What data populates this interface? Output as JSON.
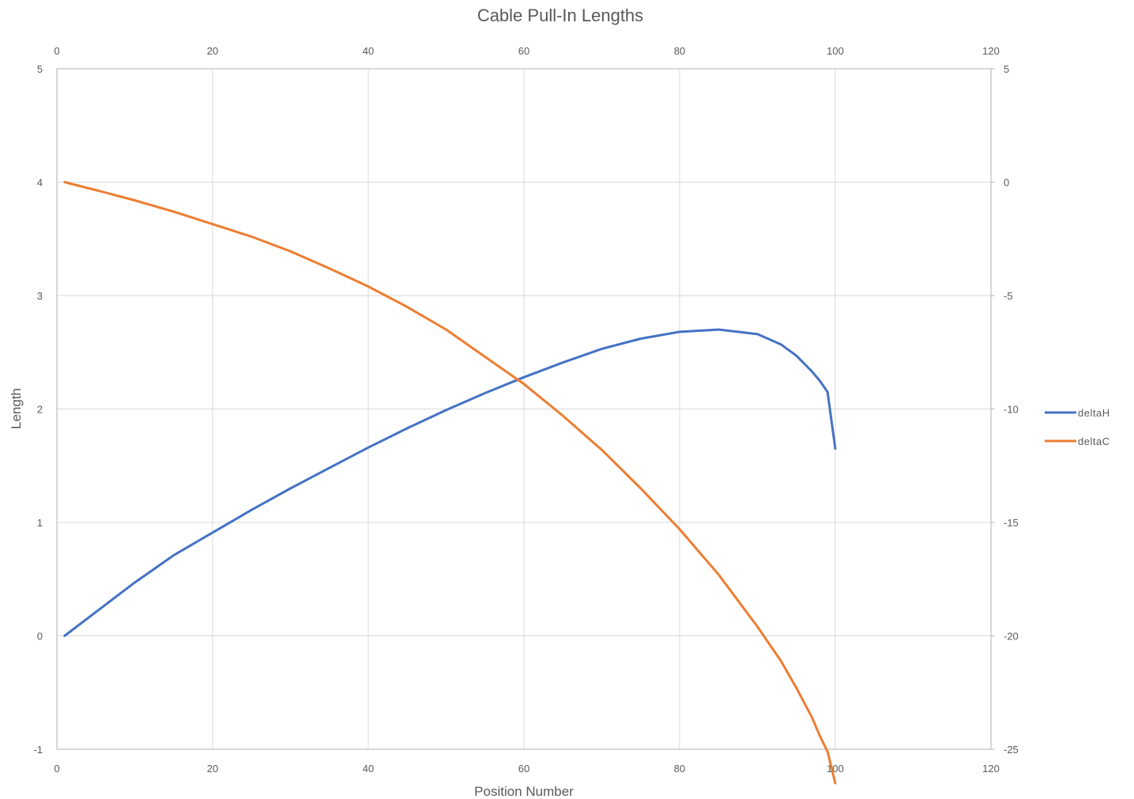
{
  "chart_data": {
    "type": "line",
    "title": "Cable Pull-In Lengths",
    "xlabel": "Position Number",
    "ylabel": "Length",
    "xlim": [
      0,
      120
    ],
    "x_ticks": [
      0,
      20,
      40,
      60,
      80,
      100,
      120
    ],
    "x_tick_labels": [
      "0",
      "20",
      "40",
      "60",
      "80",
      "100",
      "120"
    ],
    "ylim": [
      -1,
      5
    ],
    "y_ticks": [
      -1,
      0,
      1,
      2,
      3,
      4,
      5
    ],
    "y_tick_labels": [
      "-1",
      "0",
      "1",
      "2",
      "3",
      "4",
      "5"
    ],
    "y2lim": [
      -25,
      5
    ],
    "y2_ticks": [
      -25,
      -20,
      -15,
      -10,
      -5,
      0,
      5
    ],
    "y2_tick_labels": [
      "-25",
      "-20",
      "-15",
      "-10",
      "-5",
      "0",
      "5"
    ],
    "grid": true,
    "legend_position": "right",
    "x": [
      1,
      5,
      10,
      15,
      20,
      25,
      30,
      35,
      40,
      45,
      50,
      55,
      60,
      65,
      70,
      75,
      80,
      85,
      90,
      93,
      95,
      97,
      98,
      99,
      100
    ],
    "series": [
      {
        "name": "deltaH",
        "color": "#4472C4",
        "axis": "primary",
        "values": [
          0.0,
          0.21,
          0.47,
          0.71,
          0.91,
          1.11,
          1.3,
          1.48,
          1.66,
          1.83,
          1.99,
          2.14,
          2.28,
          2.41,
          2.53,
          2.62,
          2.68,
          2.7,
          2.66,
          2.57,
          2.47,
          2.33,
          2.25,
          2.15,
          1.65
        ]
      },
      {
        "name": "deltaC",
        "color": "#ED7D31",
        "axis": "secondary",
        "values": [
          0.0,
          -0.35,
          -0.8,
          -1.3,
          -1.85,
          -2.4,
          -3.05,
          -3.8,
          -4.6,
          -5.5,
          -6.5,
          -7.7,
          -8.9,
          -10.3,
          -11.8,
          -13.5,
          -15.3,
          -17.3,
          -19.6,
          -21.1,
          -22.3,
          -23.6,
          -24.4,
          -25.1,
          -26.5
        ]
      }
    ]
  }
}
